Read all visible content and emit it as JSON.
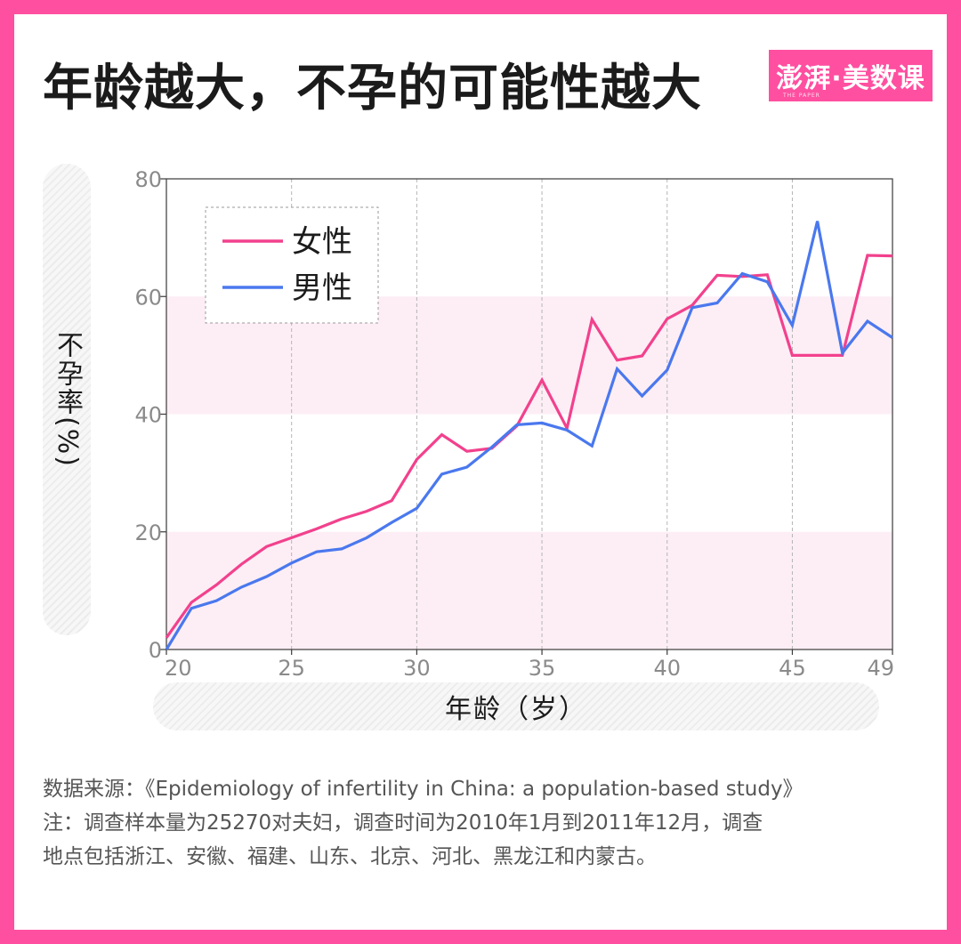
{
  "title": "年龄越大，不孕的可能性越大",
  "logo": {
    "text": "澎湃·美数课",
    "sub": "THE PAPER"
  },
  "colors": {
    "frame": "#ff4fa0",
    "band": "#fdeef5",
    "female": "#f2418d",
    "male": "#4a78ee"
  },
  "chart_data": {
    "type": "line",
    "ylabel": "不孕率(%)",
    "xlabel": "年龄（岁）",
    "xlim": [
      20,
      49
    ],
    "ylim": [
      0,
      80
    ],
    "x_ticks": [
      20,
      25,
      30,
      35,
      40,
      45,
      49
    ],
    "y_ticks": [
      0,
      20,
      40,
      60,
      80
    ],
    "grid": "vertical dashed at x ticks",
    "shaded_bands": [
      [
        0,
        20
      ],
      [
        40,
        60
      ]
    ],
    "legend": "top-left",
    "x": [
      20,
      21,
      22,
      23,
      24,
      25,
      26,
      27,
      28,
      29,
      30,
      31,
      32,
      33,
      34,
      35,
      36,
      37,
      38,
      39,
      40,
      41,
      42,
      43,
      44,
      45,
      46,
      47,
      48,
      49
    ],
    "series": [
      {
        "name": "女性",
        "color": "#f2418d",
        "values": [
          2,
          8,
          11,
          14.5,
          17.5,
          19,
          20.5,
          22.2,
          23.5,
          25.3,
          32.3,
          36.5,
          33.7,
          34.2,
          38,
          45.8,
          37.6,
          56.1,
          49.2,
          49.9,
          56.2,
          58.5,
          63.6,
          63.4,
          63.7,
          50,
          50,
          50,
          67,
          66.9
        ]
      },
      {
        "name": "男性",
        "color": "#4a78ee",
        "values": [
          0,
          7,
          8.3,
          10.6,
          12.4,
          14.7,
          16.6,
          17.1,
          19,
          21.6,
          24,
          29.8,
          31,
          34.4,
          38.2,
          38.5,
          37.3,
          34.6,
          47.7,
          43.1,
          47.5,
          58.1,
          58.9,
          63.9,
          62.5,
          55.1,
          72.8,
          50.4,
          55.8,
          53
        ]
      }
    ]
  },
  "source": [
    "数据来源：《Epidemiology of infertility in China: a population-based study》",
    "注：调查样本量为25270对夫妇，调查时间为2010年1月到2011年12月，调查",
    "地点包括浙江、安徽、福建、山东、北京、河北、黑龙江和内蒙古。"
  ]
}
